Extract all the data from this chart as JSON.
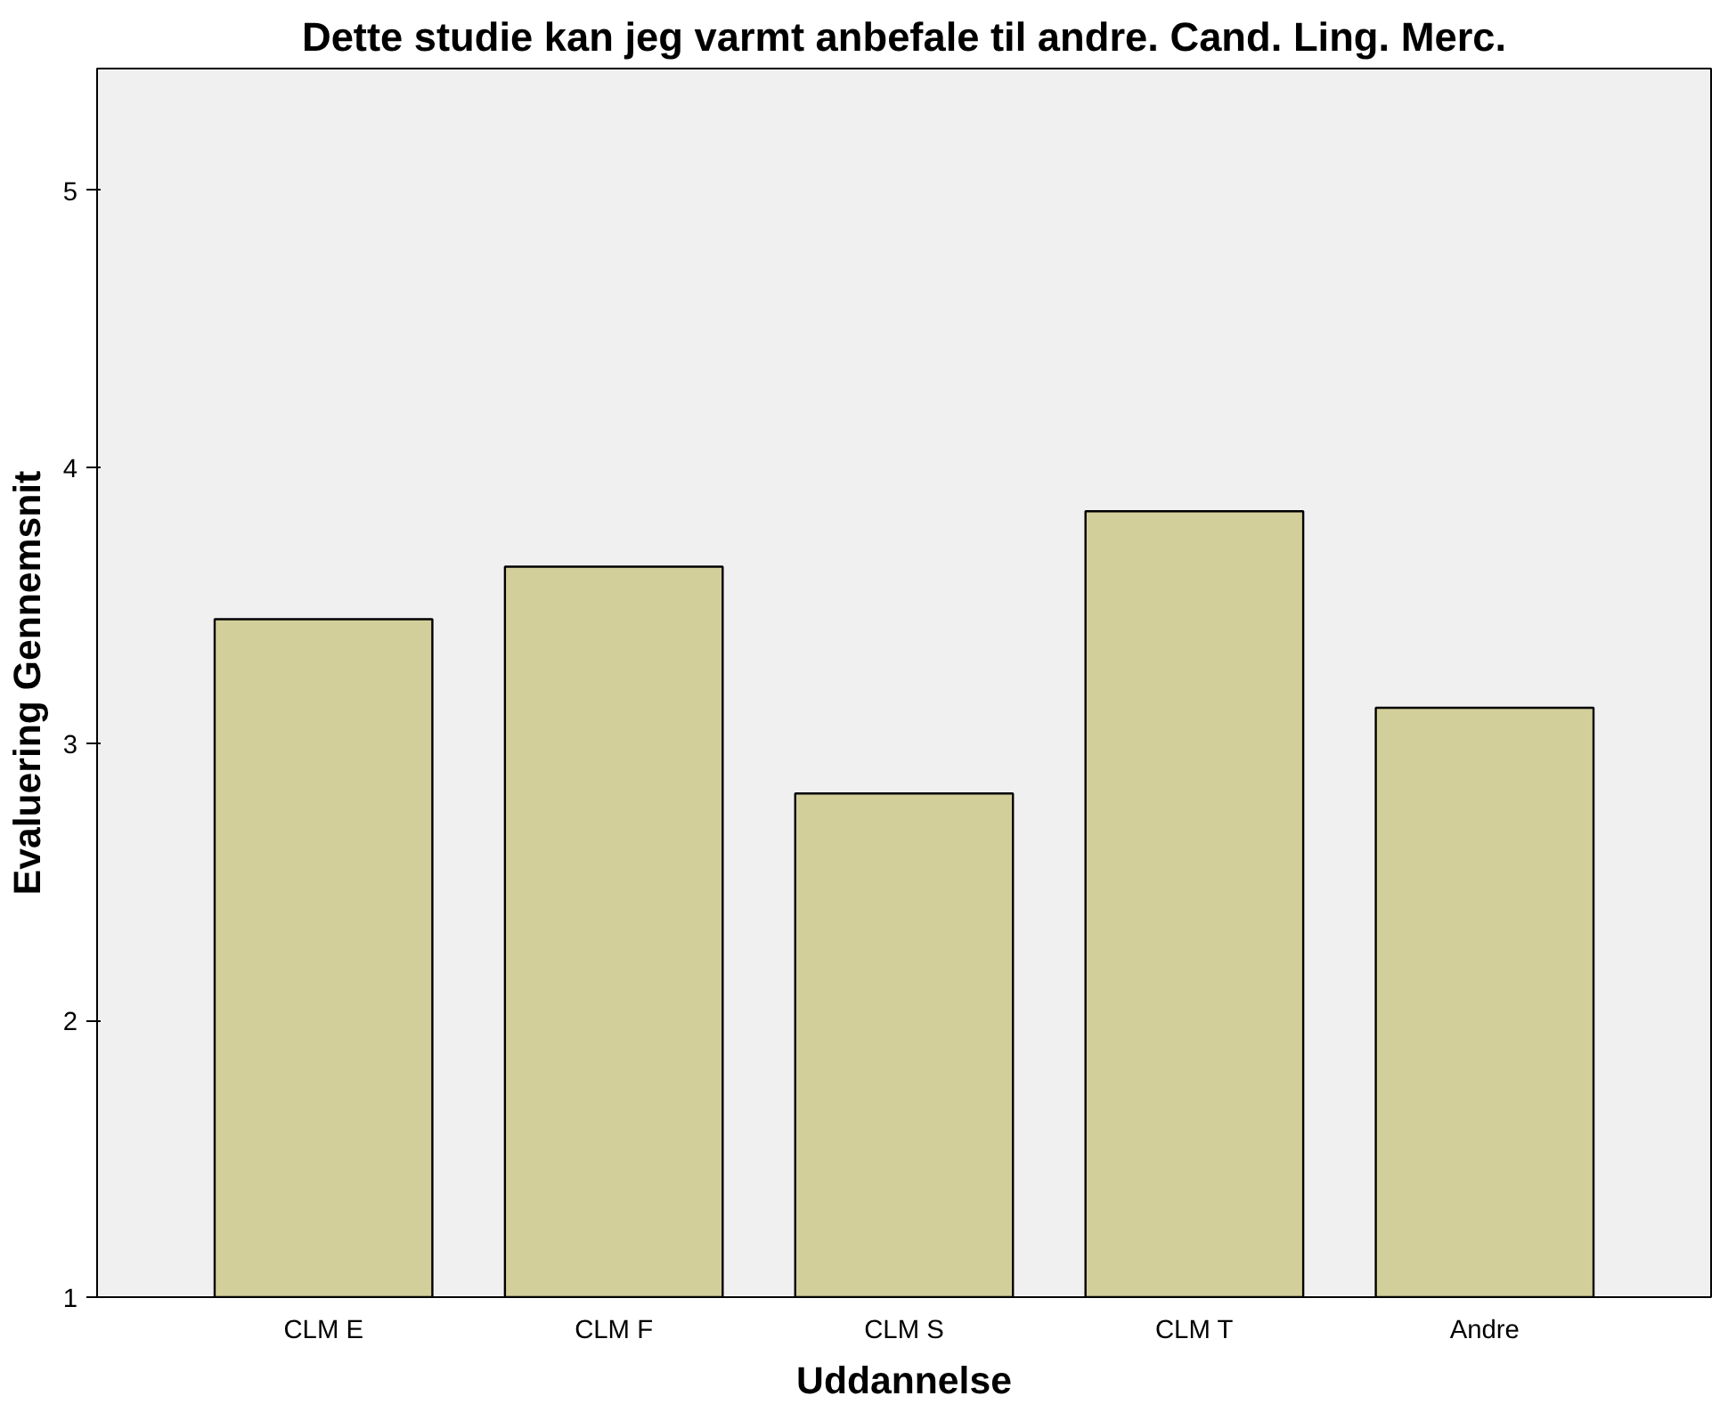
{
  "chart_data": {
    "type": "bar",
    "title": "Dette studie kan jeg varmt anbefale til andre. Cand. Ling. Merc.",
    "xlabel": "Uddannelse",
    "ylabel": "Evaluering Gennemsnit",
    "categories": [
      "CLM E",
      "CLM F",
      "CLM S",
      "CLM T",
      "Andre"
    ],
    "values": [
      3.45,
      3.64,
      2.82,
      3.84,
      3.13
    ],
    "color": "#d3cf9a",
    "ylim": [
      1,
      5.44
    ],
    "yticks": [
      1,
      2,
      3,
      4,
      5
    ],
    "grid": false
  }
}
